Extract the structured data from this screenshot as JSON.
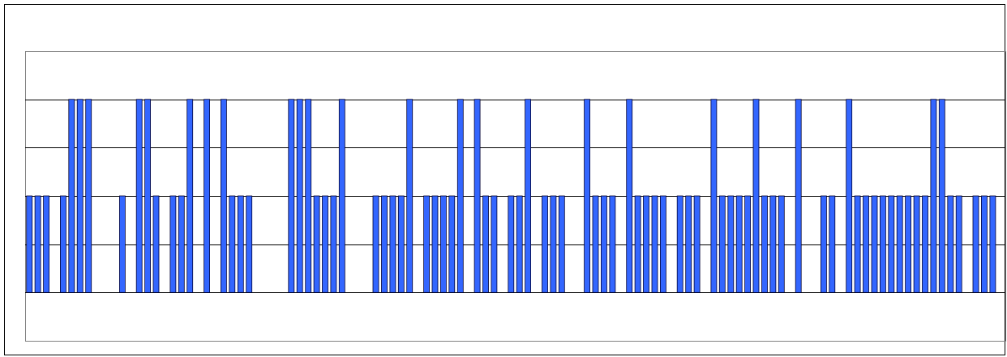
{
  "chart_data": {
    "type": "bar",
    "title": "",
    "xlabel": "",
    "ylabel": "",
    "x": [
      1,
      2,
      3,
      5,
      6,
      7,
      8,
      12,
      14,
      15,
      16,
      18,
      19,
      20,
      22,
      24,
      25,
      26,
      27,
      32,
      33,
      34,
      35,
      36,
      37,
      38,
      42,
      43,
      44,
      45,
      46,
      48,
      49,
      50,
      51,
      52,
      54,
      55,
      56,
      58,
      59,
      60,
      62,
      63,
      64,
      67,
      68,
      69,
      70,
      72,
      73,
      74,
      75,
      76,
      78,
      79,
      80,
      82,
      83,
      84,
      85,
      86,
      87,
      88,
      89,
      90,
      92,
      95,
      96,
      98,
      99,
      100,
      101,
      102,
      103,
      104,
      105,
      106,
      107,
      108,
      109,
      110,
      111,
      113,
      114,
      115
    ],
    "values": [
      1,
      1,
      1,
      1,
      2,
      2,
      2,
      1,
      2,
      2,
      1,
      1,
      1,
      2,
      2,
      2,
      1,
      1,
      1,
      2,
      2,
      2,
      1,
      1,
      1,
      2,
      1,
      1,
      1,
      1,
      2,
      1,
      1,
      1,
      1,
      2,
      2,
      1,
      1,
      1,
      1,
      2,
      1,
      1,
      1,
      2,
      1,
      1,
      1,
      2,
      1,
      1,
      1,
      1,
      1,
      1,
      1,
      2,
      1,
      1,
      1,
      1,
      2,
      1,
      1,
      1,
      2,
      1,
      1,
      2,
      1,
      1,
      1,
      1,
      1,
      1,
      1,
      1,
      1,
      2,
      2,
      1,
      1,
      1,
      1,
      1
    ],
    "xlim": [
      0.5,
      116.5
    ],
    "ylim": [
      -0.5,
      2.5
    ],
    "ygrid_step": 0.5,
    "grid": true,
    "legend": "none",
    "colors": {
      "bar_fill": "#3366ff",
      "bar_stroke": "#000033",
      "grid": "#000000",
      "axes": "#808080",
      "frame": "#000000"
    }
  }
}
